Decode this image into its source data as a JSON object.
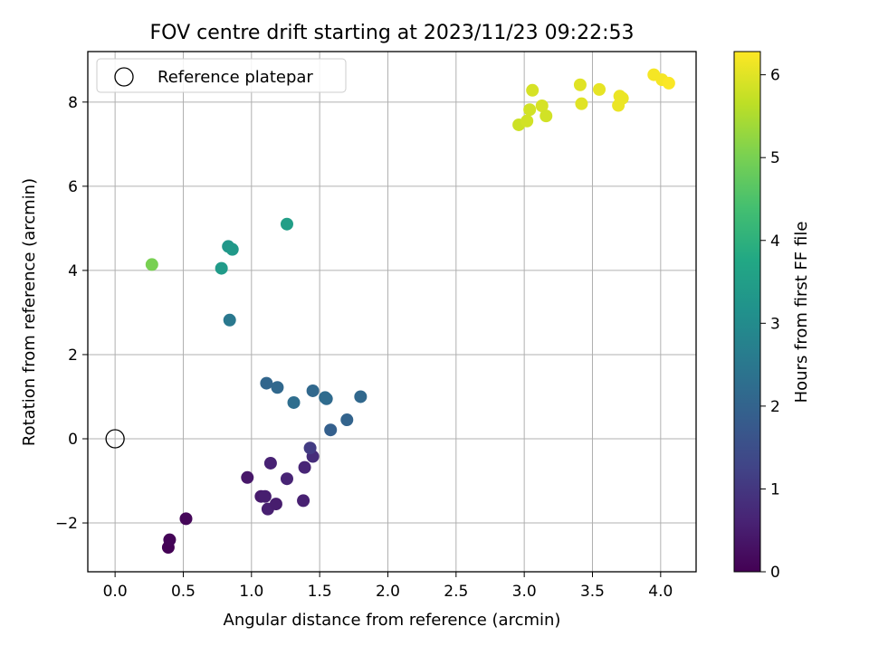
{
  "chart_data": {
    "type": "scatter",
    "title": "FOV centre drift starting at 2023/11/23 09:22:53",
    "xlabel": "Angular distance from reference (arcmin)",
    "ylabel": "Rotation from reference (arcmin)",
    "xlim": [
      -0.2,
      4.26
    ],
    "ylim": [
      -3.16,
      9.2
    ],
    "xticks": [
      0.0,
      0.5,
      1.0,
      1.5,
      2.0,
      2.5,
      3.0,
      3.5,
      4.0
    ],
    "xtick_labels": [
      "0.0",
      "0.5",
      "1.0",
      "1.5",
      "2.0",
      "2.5",
      "3.0",
      "3.5",
      "4.0"
    ],
    "yticks": [
      -2,
      0,
      2,
      4,
      6,
      8
    ],
    "ytick_labels": [
      "−2",
      "0",
      "2",
      "4",
      "6",
      "8"
    ],
    "grid": true,
    "legend": {
      "position": "top-left",
      "entries": [
        "Reference platepar"
      ]
    },
    "reference_point": {
      "x": 0,
      "y": 0
    },
    "colorbar": {
      "label": "Hours from first FF file",
      "range": [
        0,
        6.28
      ],
      "colormap": "viridis",
      "ticks": [
        0,
        1,
        2,
        3,
        4,
        5,
        6
      ],
      "tick_labels": [
        "0",
        "1",
        "2",
        "3",
        "4",
        "5",
        "6"
      ]
    },
    "points": [
      {
        "x": 0.39,
        "y": -2.58,
        "h": 0.02
      },
      {
        "x": 0.4,
        "y": -2.4,
        "h": 0.05
      },
      {
        "x": 0.52,
        "y": -1.9,
        "h": 0.1
      },
      {
        "x": 1.12,
        "y": -1.67,
        "h": 0.55
      },
      {
        "x": 1.18,
        "y": -1.55,
        "h": 0.5
      },
      {
        "x": 1.07,
        "y": -1.37,
        "h": 0.45
      },
      {
        "x": 1.1,
        "y": -1.37,
        "h": 0.52
      },
      {
        "x": 0.97,
        "y": -0.92,
        "h": 0.4
      },
      {
        "x": 1.14,
        "y": -0.58,
        "h": 0.6
      },
      {
        "x": 1.26,
        "y": -0.95,
        "h": 0.62
      },
      {
        "x": 1.38,
        "y": -1.47,
        "h": 0.58
      },
      {
        "x": 1.39,
        "y": -0.68,
        "h": 0.65
      },
      {
        "x": 1.45,
        "y": -0.42,
        "h": 0.8
      },
      {
        "x": 1.43,
        "y": -0.22,
        "h": 1.1
      },
      {
        "x": 1.58,
        "y": 0.21,
        "h": 1.9
      },
      {
        "x": 1.7,
        "y": 0.45,
        "h": 2.0
      },
      {
        "x": 1.8,
        "y": 1.0,
        "h": 2.1
      },
      {
        "x": 1.55,
        "y": 0.95,
        "h": 2.15
      },
      {
        "x": 1.54,
        "y": 0.98,
        "h": 2.2
      },
      {
        "x": 1.45,
        "y": 1.14,
        "h": 2.1
      },
      {
        "x": 1.31,
        "y": 0.86,
        "h": 2.25
      },
      {
        "x": 1.19,
        "y": 1.22,
        "h": 2.1
      },
      {
        "x": 1.11,
        "y": 1.32,
        "h": 2.05
      },
      {
        "x": 0.84,
        "y": 2.82,
        "h": 2.5
      },
      {
        "x": 0.78,
        "y": 4.05,
        "h": 3.4
      },
      {
        "x": 0.83,
        "y": 4.57,
        "h": 3.3
      },
      {
        "x": 0.86,
        "y": 4.5,
        "h": 3.35
      },
      {
        "x": 1.26,
        "y": 5.1,
        "h": 3.5
      },
      {
        "x": 0.27,
        "y": 4.14,
        "h": 5.0
      },
      {
        "x": 2.96,
        "y": 7.46,
        "h": 5.8
      },
      {
        "x": 3.02,
        "y": 7.55,
        "h": 5.85
      },
      {
        "x": 3.04,
        "y": 7.82,
        "h": 5.85
      },
      {
        "x": 3.06,
        "y": 8.28,
        "h": 5.9
      },
      {
        "x": 3.13,
        "y": 7.91,
        "h": 5.9
      },
      {
        "x": 3.16,
        "y": 7.67,
        "h": 5.85
      },
      {
        "x": 3.41,
        "y": 8.41,
        "h": 6.0
      },
      {
        "x": 3.42,
        "y": 7.96,
        "h": 6.0
      },
      {
        "x": 3.55,
        "y": 8.3,
        "h": 6.05
      },
      {
        "x": 3.69,
        "y": 7.92,
        "h": 6.1
      },
      {
        "x": 3.7,
        "y": 8.14,
        "h": 6.1
      },
      {
        "x": 3.72,
        "y": 8.09,
        "h": 6.1
      },
      {
        "x": 3.95,
        "y": 8.65,
        "h": 6.2
      },
      {
        "x": 4.01,
        "y": 8.53,
        "h": 6.2
      },
      {
        "x": 4.06,
        "y": 8.45,
        "h": 6.25
      }
    ]
  }
}
